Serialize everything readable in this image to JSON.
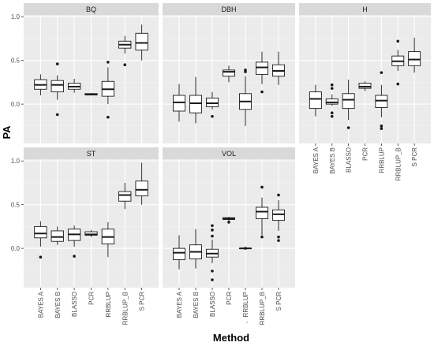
{
  "chart_data": {
    "type": "boxplot",
    "xlabel": "Method",
    "ylabel": "PA",
    "ylim": [
      -0.45,
      1.02
    ],
    "y_ticks": [
      0.0,
      0.5,
      1.0
    ],
    "y_tick_labels": [
      "0.0",
      "0.5",
      "1.0"
    ],
    "categories": [
      "BAYES A",
      "BAYES B",
      "BLASSO",
      "PCR",
      "RRBLUP",
      "RRBLUP_B",
      "S PCR"
    ],
    "stray_text": ",",
    "panels": [
      {
        "name": "BQ",
        "boxes": [
          {
            "category": "BAYES A",
            "min": 0.1,
            "q1": 0.17,
            "median": 0.22,
            "q3": 0.28,
            "max": 0.34,
            "outliers": []
          },
          {
            "category": "BAYES B",
            "min": 0.05,
            "q1": 0.14,
            "median": 0.22,
            "q3": 0.27,
            "max": 0.33,
            "outliers": [
              0.46,
              -0.12
            ]
          },
          {
            "category": "BLASSO",
            "min": 0.13,
            "q1": 0.17,
            "median": 0.2,
            "q3": 0.24,
            "max": 0.29,
            "outliers": []
          },
          {
            "category": "PCR",
            "min": 0.1,
            "q1": 0.105,
            "median": 0.11,
            "q3": 0.12,
            "max": 0.125,
            "outliers": []
          },
          {
            "category": "RRBLUP",
            "min": 0.0,
            "q1": 0.09,
            "median": 0.17,
            "q3": 0.26,
            "max": 0.42,
            "outliers": [
              0.48,
              -0.15
            ]
          },
          {
            "category": "RRBLUP_B",
            "min": 0.58,
            "q1": 0.64,
            "median": 0.68,
            "q3": 0.72,
            "max": 0.78,
            "outliers": [
              0.45
            ]
          },
          {
            "category": "S PCR",
            "min": 0.5,
            "q1": 0.62,
            "median": 0.7,
            "q3": 0.81,
            "max": 0.91,
            "outliers": []
          }
        ]
      },
      {
        "name": "DBH",
        "boxes": [
          {
            "category": "BAYES A",
            "min": -0.2,
            "q1": -0.08,
            "median": 0.02,
            "q3": 0.1,
            "max": 0.23,
            "outliers": []
          },
          {
            "category": "BAYES B",
            "min": -0.22,
            "q1": -0.1,
            "median": 0.01,
            "q3": 0.1,
            "max": 0.31,
            "outliers": []
          },
          {
            "category": "BLASSO",
            "min": -0.06,
            "q1": -0.03,
            "median": 0.01,
            "q3": 0.07,
            "max": 0.14,
            "outliers": [
              -0.14
            ]
          },
          {
            "category": "PCR",
            "min": 0.25,
            "q1": 0.32,
            "median": 0.37,
            "q3": 0.39,
            "max": 0.44,
            "outliers": []
          },
          {
            "category": "RRBLUP",
            "min": -0.25,
            "q1": -0.06,
            "median": 0.03,
            "q3": 0.12,
            "max": 0.32,
            "outliers": [
              0.37,
              0.39
            ]
          },
          {
            "category": "RRBLUP_B",
            "min": 0.23,
            "q1": 0.34,
            "median": 0.42,
            "q3": 0.48,
            "max": 0.6,
            "outliers": [
              0.14
            ]
          },
          {
            "category": "S PCR",
            "min": 0.22,
            "q1": 0.32,
            "median": 0.38,
            "q3": 0.45,
            "max": 0.6,
            "outliers": []
          }
        ]
      },
      {
        "name": "H",
        "boxes": [
          {
            "category": "BAYES A",
            "min": -0.14,
            "q1": -0.05,
            "median": 0.06,
            "q3": 0.14,
            "max": 0.22,
            "outliers": []
          },
          {
            "category": "BAYES B",
            "min": -0.02,
            "q1": 0.0,
            "median": 0.02,
            "q3": 0.06,
            "max": 0.11,
            "outliers": [
              0.18,
              0.22,
              -0.1,
              -0.14
            ]
          },
          {
            "category": "BLASSO",
            "min": -0.18,
            "q1": -0.05,
            "median": 0.05,
            "q3": 0.12,
            "max": 0.28,
            "outliers": [
              -0.27
            ]
          },
          {
            "category": "PCR",
            "min": 0.15,
            "q1": 0.18,
            "median": 0.2,
            "q3": 0.24,
            "max": 0.26,
            "outliers": []
          },
          {
            "category": "RRBLUP",
            "min": -0.15,
            "q1": -0.04,
            "median": 0.04,
            "q3": 0.1,
            "max": 0.22,
            "outliers": [
              0.36,
              -0.25,
              -0.28
            ]
          },
          {
            "category": "RRBLUP_B",
            "min": 0.38,
            "q1": 0.44,
            "median": 0.49,
            "q3": 0.55,
            "max": 0.62,
            "outliers": [
              0.72,
              0.23
            ]
          },
          {
            "category": "S PCR",
            "min": 0.36,
            "q1": 0.44,
            "median": 0.51,
            "q3": 0.6,
            "max": 0.76,
            "outliers": []
          }
        ]
      },
      {
        "name": "ST",
        "boxes": [
          {
            "category": "BAYES A",
            "min": 0.02,
            "q1": 0.12,
            "median": 0.17,
            "q3": 0.25,
            "max": 0.31,
            "outliers": [
              -0.1
            ]
          },
          {
            "category": "BAYES B",
            "min": 0.04,
            "q1": 0.08,
            "median": 0.13,
            "q3": 0.2,
            "max": 0.25,
            "outliers": []
          },
          {
            "category": "BLASSO",
            "min": 0.02,
            "q1": 0.09,
            "median": 0.16,
            "q3": 0.22,
            "max": 0.26,
            "outliers": [
              -0.09
            ]
          },
          {
            "category": "PCR",
            "min": 0.13,
            "q1": 0.15,
            "median": 0.16,
            "q3": 0.19,
            "max": 0.21,
            "outliers": []
          },
          {
            "category": "RRBLUP",
            "min": -0.1,
            "q1": 0.05,
            "median": 0.13,
            "q3": 0.22,
            "max": 0.3,
            "outliers": []
          },
          {
            "category": "RRBLUP_B",
            "min": 0.45,
            "q1": 0.54,
            "median": 0.61,
            "q3": 0.65,
            "max": 0.75,
            "outliers": []
          },
          {
            "category": "S PCR",
            "min": 0.5,
            "q1": 0.6,
            "median": 0.67,
            "q3": 0.77,
            "max": 0.98,
            "outliers": []
          }
        ]
      },
      {
        "name": "VOL",
        "boxes": [
          {
            "category": "BAYES A",
            "min": -0.24,
            "q1": -0.13,
            "median": -0.05,
            "q3": 0.0,
            "max": 0.15,
            "outliers": []
          },
          {
            "category": "BAYES B",
            "min": -0.23,
            "q1": -0.12,
            "median": -0.04,
            "q3": 0.04,
            "max": 0.22,
            "outliers": []
          },
          {
            "category": "BLASSO",
            "min": -0.17,
            "q1": -0.1,
            "median": -0.06,
            "q3": -0.01,
            "max": 0.1,
            "outliers": [
              0.26,
              0.21,
              0.14,
              -0.26,
              -0.36
            ]
          },
          {
            "category": "PCR",
            "min": 0.3,
            "q1": 0.33,
            "median": 0.34,
            "q3": 0.35,
            "max": 0.36,
            "outliers": [
              0.3
            ]
          },
          {
            "category": "RRBLUP",
            "min": 0.0,
            "q1": 0.0,
            "median": 0.0,
            "q3": 0.0,
            "max": 0.0,
            "outliers": [
              0.0
            ]
          },
          {
            "category": "RRBLUP_B",
            "min": 0.15,
            "q1": 0.34,
            "median": 0.42,
            "q3": 0.47,
            "max": 0.58,
            "outliers": [
              0.7,
              0.13
            ]
          },
          {
            "category": "S PCR",
            "min": 0.2,
            "q1": 0.32,
            "median": 0.39,
            "q3": 0.44,
            "max": 0.55,
            "outliers": [
              0.61,
              0.13,
              0.09
            ]
          }
        ]
      }
    ]
  },
  "colors": {
    "strip_bg": "#d9d9d9",
    "panel_bg": "#ebebeb",
    "grid_major": "#ffffff",
    "grid_minor": "#f5f5f5",
    "box_fill": "#ffffff",
    "box_line": "#1a1a1a"
  }
}
